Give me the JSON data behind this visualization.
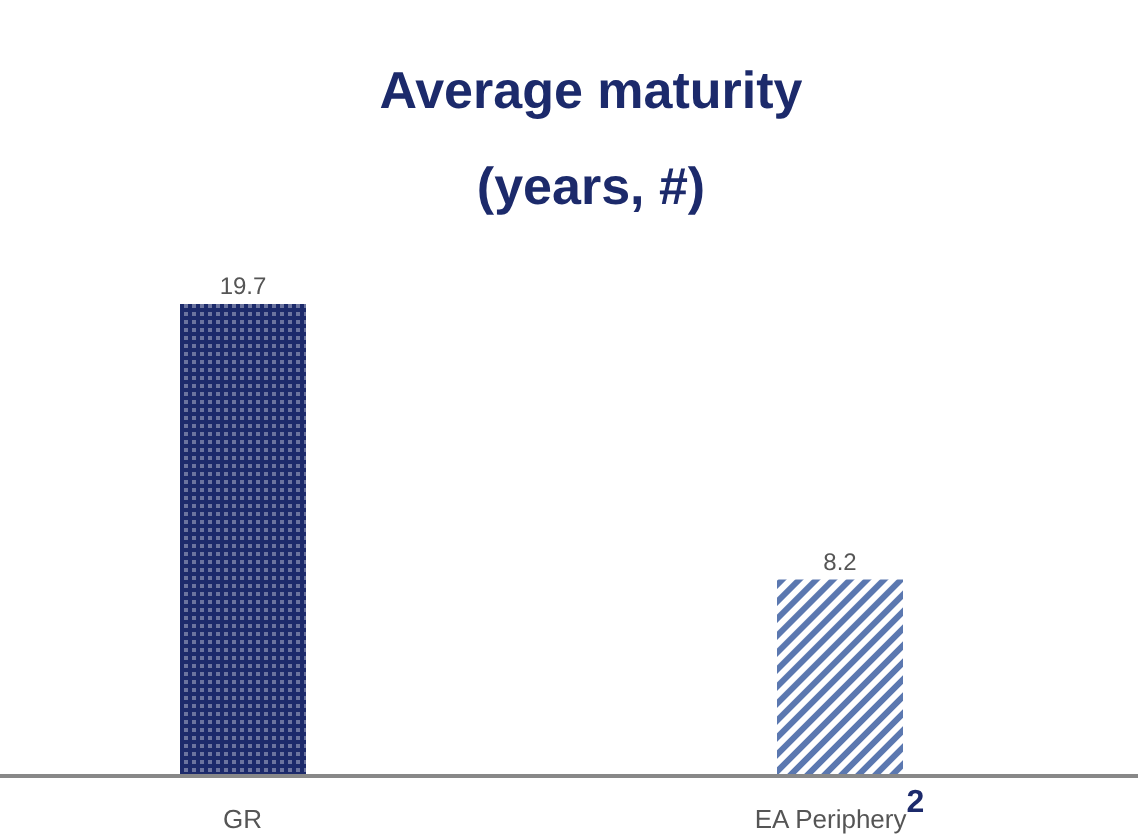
{
  "chart_data": {
    "type": "bar",
    "title": "Average maturity",
    "subtitle": "(years, #)",
    "categories": [
      "GR",
      "EA Periphery$^{2}$"
    ],
    "values": [
      19.7,
      8.2
    ],
    "colors": [
      "#1c2a6b",
      "#5b78b0"
    ],
    "data_labels": true
  }
}
